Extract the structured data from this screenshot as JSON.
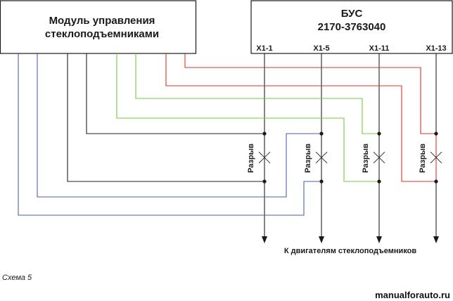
{
  "module_box": {
    "line1": "Модуль управления",
    "line2": "стеклоподъемниками"
  },
  "bus_box": {
    "line1": "БУС",
    "line2": "2170-3763040"
  },
  "pins": [
    "X1-1",
    "X1-5",
    "X1-11",
    "X1-13"
  ],
  "break_label": "Разрыв",
  "bottom_label": "К двигателям стеклоподъемников",
  "caption": "Схема 5",
  "watermark": "manualforauto.ru",
  "colors": {
    "black_wire": "#222222",
    "green_wire": "#7ac943",
    "red_wire": "#e0302a",
    "blue_wire": "#4a5fb0"
  }
}
